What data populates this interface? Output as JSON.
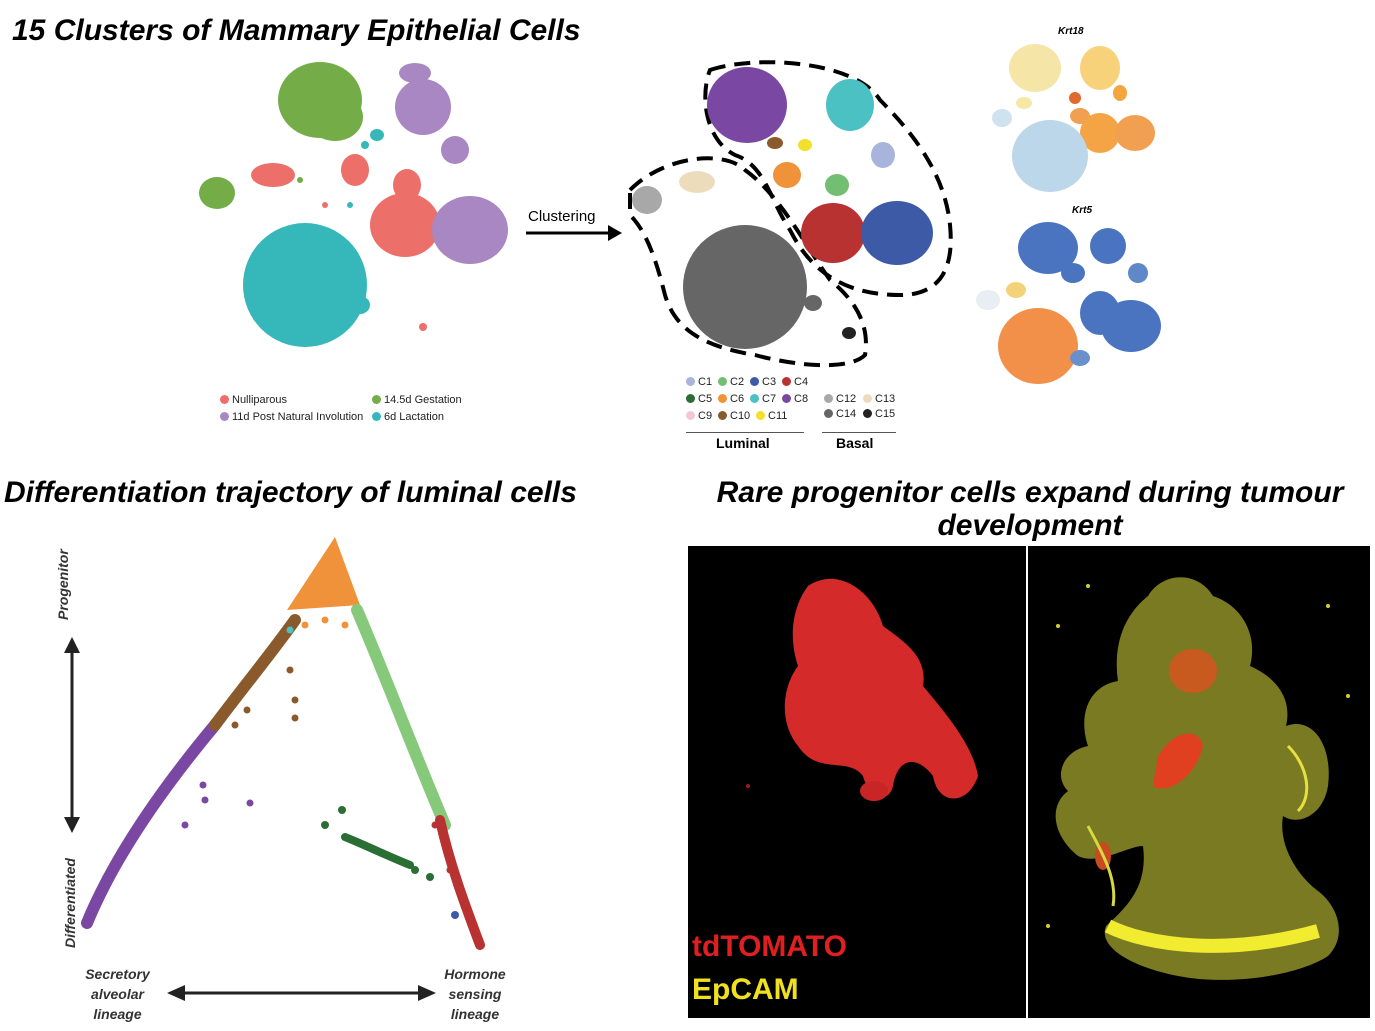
{
  "titles": {
    "panel1": "15 Clusters of Mammary Epithelial Cells",
    "panel2": "Differentiation trajectory of luminal cells",
    "panel3_line1": "Rare progenitor cells expand during tumour",
    "panel3_line2": "development"
  },
  "clustering_label": "Clustering",
  "conditions_legend": [
    {
      "label": "Nulliparous",
      "color": "#ec6f6a"
    },
    {
      "label": "14.5d Gestation",
      "color": "#74ac47"
    },
    {
      "label": "11d Post Natural Involution",
      "color": "#a887c3"
    },
    {
      "label": "6d Lactation",
      "color": "#36b8bb"
    }
  ],
  "clusters_legend": [
    {
      "label": "C1",
      "color": "#a9b4dc"
    },
    {
      "label": "C2",
      "color": "#72be72"
    },
    {
      "label": "C3",
      "color": "#3c5aa6"
    },
    {
      "label": "C4",
      "color": "#b83232"
    },
    {
      "label": "C5",
      "color": "#2a6e34"
    },
    {
      "label": "C6",
      "color": "#f0923a"
    },
    {
      "label": "C7",
      "color": "#4bc1c4"
    },
    {
      "label": "C8",
      "color": "#7a48a2"
    },
    {
      "label": "C9",
      "color": "#f4c6d8"
    },
    {
      "label": "C10",
      "color": "#8a5a2c"
    },
    {
      "label": "C11",
      "color": "#f2e02c"
    },
    {
      "label": "C12",
      "color": "#a8a8a8"
    },
    {
      "label": "C13",
      "color": "#eddcbc"
    },
    {
      "label": "C14",
      "color": "#666666"
    },
    {
      "label": "C15",
      "color": "#222222"
    }
  ],
  "lineage_groups": {
    "luminal": "Luminal",
    "basal": "Basal"
  },
  "gene_labels": {
    "top": "Krt18",
    "bottom": "Krt5"
  },
  "trajectory": {
    "y_top": "Progenitor",
    "y_bottom": "Differentiated",
    "x_left_lines": [
      "Secretory",
      "alveolar",
      "lineage"
    ],
    "x_right_lines": [
      "Hormone",
      "sensing",
      "lineage"
    ]
  },
  "microscopy_labels": {
    "red": "tdTOMATO",
    "yellow": "EpCAM",
    "red_color": "#e02020",
    "yellow_color": "#f0e020"
  }
}
